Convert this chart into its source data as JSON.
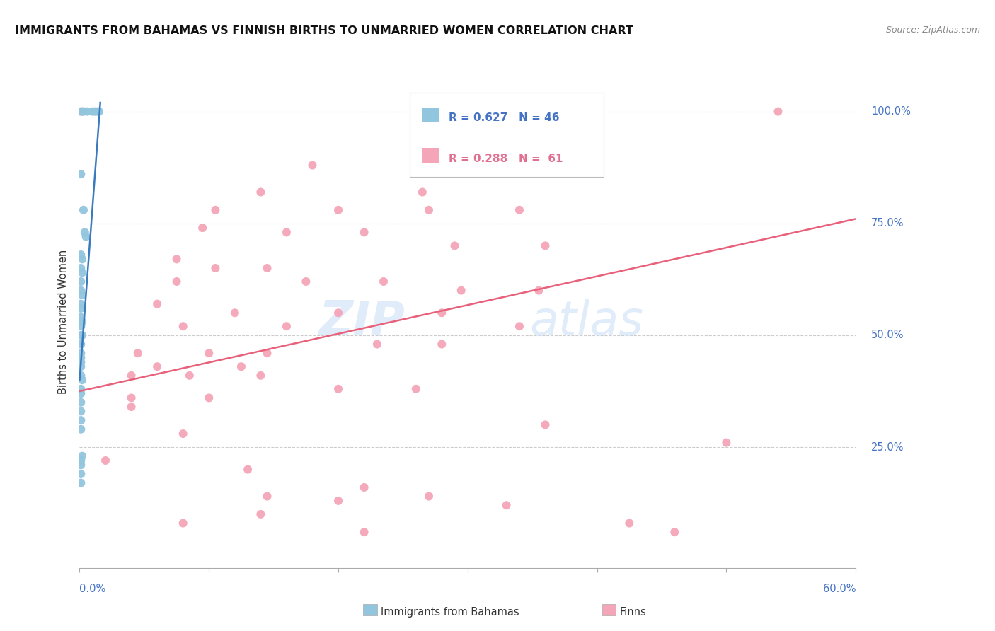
{
  "title": "IMMIGRANTS FROM BAHAMAS VS FINNISH BIRTHS TO UNMARRIED WOMEN CORRELATION CHART",
  "source": "Source: ZipAtlas.com",
  "ylabel": "Births to Unmarried Women",
  "xmin": 0.0,
  "xmax": 0.6,
  "ymin": -0.02,
  "ymax": 1.08,
  "watermark_zip": "ZIP",
  "watermark_atlas": "atlas",
  "blue_color": "#92c5de",
  "pink_color": "#f4a6b8",
  "blue_line_color": "#3a7abf",
  "pink_line_color": "#e8607a",
  "blue_scatter": [
    [
      0.001,
      1.0
    ],
    [
      0.003,
      1.0
    ],
    [
      0.006,
      1.0
    ],
    [
      0.01,
      1.0
    ],
    [
      0.012,
      1.0
    ],
    [
      0.014,
      1.0
    ],
    [
      0.015,
      1.0
    ],
    [
      0.001,
      0.86
    ],
    [
      0.003,
      0.78
    ],
    [
      0.004,
      0.73
    ],
    [
      0.005,
      0.72
    ],
    [
      0.001,
      0.68
    ],
    [
      0.002,
      0.67
    ],
    [
      0.001,
      0.65
    ],
    [
      0.002,
      0.64
    ],
    [
      0.001,
      0.62
    ],
    [
      0.001,
      0.6
    ],
    [
      0.002,
      0.59
    ],
    [
      0.001,
      0.57
    ],
    [
      0.001,
      0.56
    ],
    [
      0.001,
      0.54
    ],
    [
      0.002,
      0.53
    ],
    [
      0.001,
      0.52
    ],
    [
      0.001,
      0.5
    ],
    [
      0.002,
      0.5
    ],
    [
      0.001,
      0.48
    ],
    [
      0.001,
      0.46
    ],
    [
      0.001,
      0.45
    ],
    [
      0.001,
      0.43
    ],
    [
      0.001,
      0.41
    ],
    [
      0.002,
      0.4
    ],
    [
      0.001,
      0.38
    ],
    [
      0.001,
      0.37
    ],
    [
      0.001,
      0.35
    ],
    [
      0.001,
      0.33
    ],
    [
      0.001,
      0.31
    ],
    [
      0.001,
      0.29
    ],
    [
      0.001,
      0.44
    ],
    [
      0.002,
      0.23
    ],
    [
      0.001,
      0.21
    ],
    [
      0.001,
      0.19
    ],
    [
      0.001,
      0.17
    ],
    [
      0.001,
      0.22
    ]
  ],
  "pink_scatter": [
    [
      0.002,
      1.0
    ],
    [
      0.33,
      1.0
    ],
    [
      0.54,
      1.0
    ],
    [
      0.18,
      0.88
    ],
    [
      0.14,
      0.82
    ],
    [
      0.265,
      0.82
    ],
    [
      0.105,
      0.78
    ],
    [
      0.2,
      0.78
    ],
    [
      0.27,
      0.78
    ],
    [
      0.34,
      0.78
    ],
    [
      0.095,
      0.74
    ],
    [
      0.16,
      0.73
    ],
    [
      0.22,
      0.73
    ],
    [
      0.29,
      0.7
    ],
    [
      0.36,
      0.7
    ],
    [
      0.075,
      0.67
    ],
    [
      0.105,
      0.65
    ],
    [
      0.145,
      0.65
    ],
    [
      0.075,
      0.62
    ],
    [
      0.175,
      0.62
    ],
    [
      0.235,
      0.62
    ],
    [
      0.295,
      0.6
    ],
    [
      0.355,
      0.6
    ],
    [
      0.06,
      0.57
    ],
    [
      0.12,
      0.55
    ],
    [
      0.2,
      0.55
    ],
    [
      0.28,
      0.55
    ],
    [
      0.08,
      0.52
    ],
    [
      0.16,
      0.52
    ],
    [
      0.34,
      0.52
    ],
    [
      0.23,
      0.48
    ],
    [
      0.28,
      0.48
    ],
    [
      0.045,
      0.46
    ],
    [
      0.1,
      0.46
    ],
    [
      0.145,
      0.46
    ],
    [
      0.06,
      0.43
    ],
    [
      0.125,
      0.43
    ],
    [
      0.04,
      0.41
    ],
    [
      0.085,
      0.41
    ],
    [
      0.14,
      0.41
    ],
    [
      0.2,
      0.38
    ],
    [
      0.26,
      0.38
    ],
    [
      0.04,
      0.36
    ],
    [
      0.1,
      0.36
    ],
    [
      0.04,
      0.34
    ],
    [
      0.08,
      0.28
    ],
    [
      0.36,
      0.3
    ],
    [
      0.02,
      0.22
    ],
    [
      0.13,
      0.2
    ],
    [
      0.22,
      0.16
    ],
    [
      0.145,
      0.14
    ],
    [
      0.2,
      0.13
    ],
    [
      0.27,
      0.14
    ],
    [
      0.33,
      0.12
    ],
    [
      0.14,
      0.1
    ],
    [
      0.08,
      0.08
    ],
    [
      0.425,
      0.08
    ],
    [
      0.22,
      0.06
    ],
    [
      0.46,
      0.06
    ],
    [
      0.5,
      0.26
    ]
  ],
  "blue_line_x": [
    0.0,
    0.016
  ],
  "blue_line_y": [
    0.4,
    1.02
  ],
  "pink_line_x": [
    0.0,
    0.6
  ],
  "pink_line_y": [
    0.375,
    0.76
  ]
}
